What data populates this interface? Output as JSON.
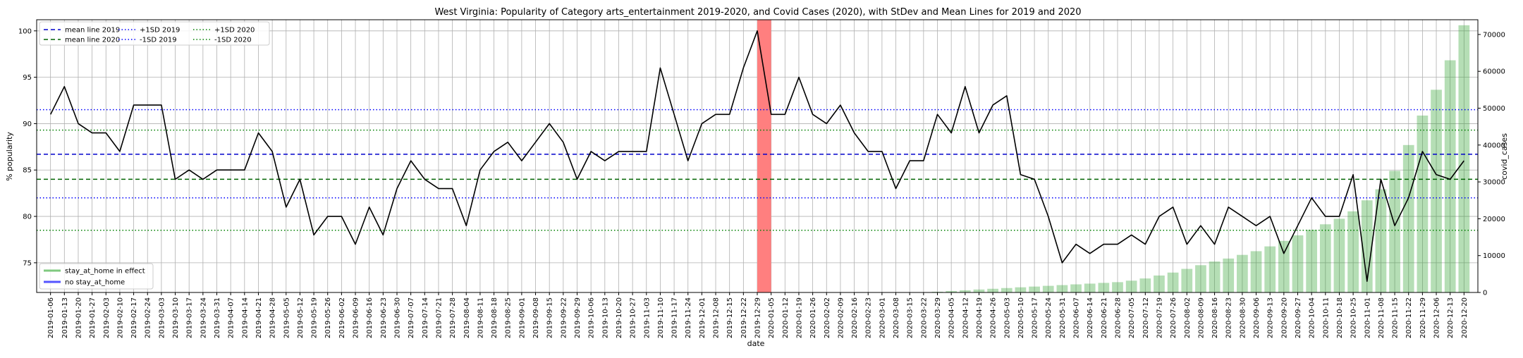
{
  "chart_data": {
    "type": "line",
    "title": "West Virginia: Popularity of Category arts_entertainment 2019-2020, and Covid Cases (2020), with StDev and Mean Lines for 2019 and 2020",
    "xlabel": "date",
    "ylabel": "% popularity",
    "y2label": "covid_cases",
    "ylim": [
      71.8,
      101.2
    ],
    "y2lim": [
      0,
      74000
    ],
    "yticks": [
      75,
      80,
      85,
      90,
      95,
      100
    ],
    "y2ticks": [
      0,
      10000,
      20000,
      30000,
      40000,
      50000,
      60000,
      70000
    ],
    "grid": true,
    "x": [
      "2019-01-06",
      "2019-01-13",
      "2019-01-20",
      "2019-01-27",
      "2019-02-03",
      "2019-02-10",
      "2019-02-17",
      "2019-02-24",
      "2019-03-03",
      "2019-03-10",
      "2019-03-17",
      "2019-03-24",
      "2019-03-31",
      "2019-04-07",
      "2019-04-14",
      "2019-04-21",
      "2019-04-28",
      "2019-05-05",
      "2019-05-12",
      "2019-05-19",
      "2019-05-26",
      "2019-06-02",
      "2019-06-09",
      "2019-06-16",
      "2019-06-23",
      "2019-06-30",
      "2019-07-07",
      "2019-07-14",
      "2019-07-21",
      "2019-07-28",
      "2019-08-04",
      "2019-08-11",
      "2019-08-18",
      "2019-08-25",
      "2019-09-01",
      "2019-09-08",
      "2019-09-15",
      "2019-09-22",
      "2019-09-29",
      "2019-10-06",
      "2019-10-13",
      "2019-10-20",
      "2019-10-27",
      "2019-11-03",
      "2019-11-10",
      "2019-11-17",
      "2019-11-24",
      "2019-12-01",
      "2019-12-08",
      "2019-12-15",
      "2019-12-22",
      "2019-12-29",
      "2020-01-05",
      "2020-01-12",
      "2020-01-19",
      "2020-01-26",
      "2020-02-02",
      "2020-02-09",
      "2020-02-16",
      "2020-02-23",
      "2020-03-01",
      "2020-03-08",
      "2020-03-15",
      "2020-03-22",
      "2020-03-29",
      "2020-04-05",
      "2020-04-12",
      "2020-04-19",
      "2020-04-26",
      "2020-05-03",
      "2020-05-10",
      "2020-05-17",
      "2020-05-24",
      "2020-05-31",
      "2020-06-07",
      "2020-06-14",
      "2020-06-21",
      "2020-06-28",
      "2020-07-05",
      "2020-07-12",
      "2020-07-19",
      "2020-07-26",
      "2020-08-02",
      "2020-08-09",
      "2020-08-16",
      "2020-08-23",
      "2020-08-30",
      "2020-09-06",
      "2020-09-13",
      "2020-09-20",
      "2020-09-27",
      "2020-10-04",
      "2020-10-11",
      "2020-10-18",
      "2020-10-25",
      "2020-11-01",
      "2020-11-08",
      "2020-11-15",
      "2020-11-22",
      "2020-11-29",
      "2020-12-06",
      "2020-12-13",
      "2020-12-20"
    ],
    "series": [
      {
        "kind": "line",
        "color": "#000000",
        "values": [
          91,
          94,
          90,
          89,
          89,
          87,
          92,
          92,
          92,
          84,
          85,
          84,
          85,
          85,
          85,
          89,
          87,
          81,
          84,
          78,
          80,
          80,
          77,
          81,
          78,
          83,
          86,
          84,
          83,
          83,
          79,
          85,
          87,
          88,
          86,
          88,
          90,
          88,
          84,
          87,
          86,
          87,
          87,
          87,
          96,
          91,
          86,
          90,
          91,
          91,
          96,
          100,
          91,
          91,
          95,
          91,
          90,
          92,
          89,
          87,
          87,
          83,
          86,
          86,
          91,
          89,
          94,
          89,
          92,
          93,
          84.5,
          84,
          80,
          75,
          77,
          76,
          77,
          77,
          78,
          77,
          80,
          81,
          77,
          79,
          77,
          81,
          80,
          79,
          80,
          76,
          79,
          82,
          80,
          80,
          84.5,
          73,
          84,
          79,
          82,
          87,
          84.5,
          84,
          86
        ]
      },
      {
        "kind": "bar",
        "name": "covid_cases",
        "axis": "right",
        "color": "#2ca02c",
        "values": [
          null,
          null,
          null,
          null,
          null,
          null,
          null,
          null,
          null,
          null,
          null,
          null,
          null,
          null,
          null,
          null,
          null,
          null,
          null,
          null,
          null,
          null,
          null,
          null,
          null,
          null,
          null,
          null,
          null,
          null,
          null,
          null,
          null,
          null,
          null,
          null,
          null,
          null,
          null,
          null,
          null,
          null,
          null,
          null,
          null,
          null,
          null,
          null,
          null,
          null,
          null,
          null,
          null,
          null,
          null,
          null,
          null,
          null,
          null,
          null,
          null,
          null,
          null,
          0,
          200,
          400,
          600,
          800,
          1000,
          1200,
          1400,
          1600,
          1800,
          2000,
          2200,
          2400,
          2600,
          2800,
          3200,
          3800,
          4600,
          5400,
          6400,
          7400,
          8400,
          9200,
          10200,
          11200,
          12500,
          14000,
          15500,
          17000,
          18500,
          20000,
          22000,
          25000,
          28000,
          33000,
          40000,
          48000,
          55000,
          63000,
          72500
        ]
      }
    ],
    "reference_lines": [
      {
        "label": "mean line 2019",
        "value": 86.7,
        "color": "#0000cc",
        "style": "dashed"
      },
      {
        "label": "mean line 2020",
        "value": 84.0,
        "color": "#006400",
        "style": "dashed"
      },
      {
        "label": "+1SD 2019",
        "value": 91.5,
        "color": "#0000ff",
        "style": "dotted"
      },
      {
        "label": "-1SD 2019",
        "value": 82.0,
        "color": "#0000ff",
        "style": "dotted"
      },
      {
        "label": "+1SD 2020",
        "value": 89.3,
        "color": "#008000",
        "style": "dotted"
      },
      {
        "label": "-1SD 2020",
        "value": 78.5,
        "color": "#008000",
        "style": "dotted"
      }
    ],
    "highlight": {
      "from": "2019-12-29",
      "to": "2020-01-05",
      "color": "#ff7f7f"
    },
    "legend_top": {
      "placement": "top-left",
      "entries": [
        "mean line 2019",
        "mean line 2020",
        "+1SD 2019",
        "-1SD 2019",
        "+1SD 2020",
        "-1SD 2020"
      ]
    },
    "legend_bottom": {
      "placement": "bottom-left",
      "entries": [
        {
          "label": "stay_at_home in effect",
          "color": "#7fc97f"
        },
        {
          "label": "no stay_at_home",
          "color": "#5555ff"
        }
      ]
    }
  }
}
